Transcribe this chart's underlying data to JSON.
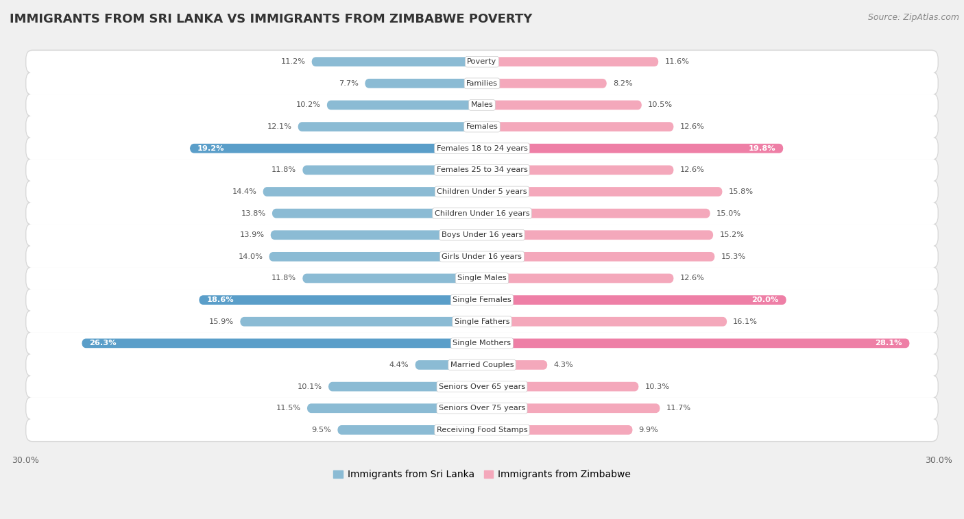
{
  "title": "IMMIGRANTS FROM SRI LANKA VS IMMIGRANTS FROM ZIMBABWE POVERTY",
  "source": "Source: ZipAtlas.com",
  "categories": [
    "Poverty",
    "Families",
    "Males",
    "Females",
    "Females 18 to 24 years",
    "Females 25 to 34 years",
    "Children Under 5 years",
    "Children Under 16 years",
    "Boys Under 16 years",
    "Girls Under 16 years",
    "Single Males",
    "Single Females",
    "Single Fathers",
    "Single Mothers",
    "Married Couples",
    "Seniors Over 65 years",
    "Seniors Over 75 years",
    "Receiving Food Stamps"
  ],
  "sri_lanka": [
    11.2,
    7.7,
    10.2,
    12.1,
    19.2,
    11.8,
    14.4,
    13.8,
    13.9,
    14.0,
    11.8,
    18.6,
    15.9,
    26.3,
    4.4,
    10.1,
    11.5,
    9.5
  ],
  "zimbabwe": [
    11.6,
    8.2,
    10.5,
    12.6,
    19.8,
    12.6,
    15.8,
    15.0,
    15.2,
    15.3,
    12.6,
    20.0,
    16.1,
    28.1,
    4.3,
    10.3,
    11.7,
    9.9
  ],
  "sri_lanka_color": "#8bbbd4",
  "zimbabwe_color": "#f4a8bb",
  "sri_lanka_highlight_color": "#5a9ec9",
  "zimbabwe_highlight_color": "#ee7fa6",
  "highlight_indices": [
    4,
    11,
    13
  ],
  "axis_limit": 30.0,
  "bg_color": "#f0f0f0",
  "row_bg_color": "#e0e0e0",
  "row_inner_color": "#f8f8f8",
  "legend_sri_lanka": "Immigrants from Sri Lanka",
  "legend_zimbabwe": "Immigrants from Zimbabwe"
}
